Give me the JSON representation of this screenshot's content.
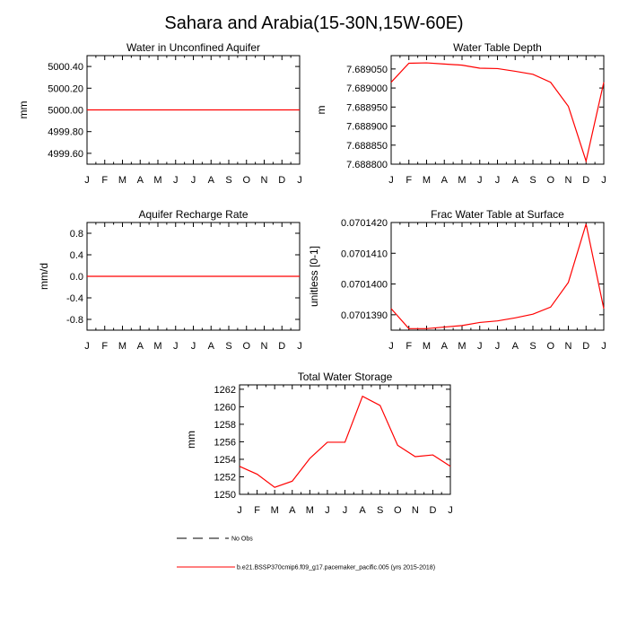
{
  "figure_title": "Sahara and Arabia(15-30N,15W-60E)",
  "legend": {
    "obs_label": "No Obs",
    "model_label": "b.e21.BSSP370cmip6.f09_g17.pacemaker_pacific.005 (yrs 2015-2018)",
    "model_color": "#ff0000",
    "obs_color": "#000000"
  },
  "chart_data": [
    {
      "type": "line",
      "title": "Water in Unconfined Aquifer",
      "ylabel": "mm",
      "xlabel": "",
      "x": [
        "J",
        "F",
        "M",
        "A",
        "M",
        "J",
        "J",
        "A",
        "S",
        "O",
        "N",
        "D",
        "J"
      ],
      "ylim": [
        4999.5,
        5000.5
      ],
      "yticks": [
        4999.6,
        4999.8,
        5000.0,
        5000.2,
        5000.4
      ],
      "ytick_labels": [
        "4999.60",
        "4999.80",
        "5000.00",
        "5000.20",
        "5000.40"
      ],
      "series": [
        {
          "color": "#ff0000",
          "values": [
            5000,
            5000,
            5000,
            5000,
            5000,
            5000,
            5000,
            5000,
            5000,
            5000,
            5000,
            5000,
            5000
          ]
        }
      ]
    },
    {
      "type": "line",
      "title": "Water Table Depth",
      "ylabel": "m",
      "xlabel": "",
      "x": [
        "J",
        "F",
        "M",
        "A",
        "M",
        "J",
        "J",
        "A",
        "S",
        "O",
        "N",
        "D",
        "J"
      ],
      "ylim": [
        7.6888,
        7.689085
      ],
      "yticks": [
        7.6888,
        7.68885,
        7.6889,
        7.68895,
        7.689,
        7.68905
      ],
      "ytick_labels": [
        "7.688800",
        "7.688850",
        "7.688900",
        "7.688950",
        "7.689000",
        "7.689050"
      ],
      "series": [
        {
          "color": "#ff0000",
          "values": [
            7.689015,
            7.689065,
            7.689066,
            7.689063,
            7.68906,
            7.689052,
            7.689051,
            7.689044,
            7.689036,
            7.689015,
            7.688952,
            7.688808,
            7.689015
          ]
        }
      ]
    },
    {
      "type": "line",
      "title": "Aquifer Recharge Rate",
      "ylabel": "mm/d",
      "xlabel": "",
      "x": [
        "J",
        "F",
        "M",
        "A",
        "M",
        "J",
        "J",
        "A",
        "S",
        "O",
        "N",
        "D",
        "J"
      ],
      "ylim": [
        -1.0,
        1.0
      ],
      "yticks": [
        -0.8,
        -0.4,
        0.0,
        0.4,
        0.8
      ],
      "ytick_labels": [
        "-0.8",
        "-0.4",
        "0.0",
        "0.4",
        "0.8"
      ],
      "series": [
        {
          "color": "#ff0000",
          "values": [
            0,
            0,
            0,
            0,
            0,
            0,
            0,
            0,
            0,
            0,
            0,
            0,
            0
          ]
        }
      ]
    },
    {
      "type": "line",
      "title": "Frac Water Table at Surface",
      "ylabel": "unitless [0-1]",
      "xlabel": "",
      "x": [
        "J",
        "F",
        "M",
        "A",
        "M",
        "J",
        "J",
        "A",
        "S",
        "O",
        "N",
        "D",
        "J"
      ],
      "ylim": [
        0.0701385,
        0.070142
      ],
      "yticks": [
        0.070139,
        0.07014,
        0.070141,
        0.070142
      ],
      "ytick_labels": [
        "0.0701390",
        "0.0701400",
        "0.0701410",
        "0.0701420"
      ],
      "series": [
        {
          "color": "#ff0000",
          "values": [
            0.0701392,
            0.07013855,
            0.07013855,
            0.0701386,
            0.07013865,
            0.07013875,
            0.0701388,
            0.0701389,
            0.07013902,
            0.07013925,
            0.07014005,
            0.07014195,
            0.0701392
          ]
        }
      ]
    },
    {
      "type": "line",
      "title": "Total Water Storage",
      "ylabel": "mm",
      "xlabel": "",
      "x": [
        "J",
        "F",
        "M",
        "A",
        "M",
        "J",
        "J",
        "A",
        "S",
        "O",
        "N",
        "D",
        "J"
      ],
      "ylim": [
        1250,
        1262.5
      ],
      "yticks": [
        1250,
        1252,
        1254,
        1256,
        1258,
        1260,
        1262
      ],
      "ytick_labels": [
        "1250",
        "1252",
        "1254",
        "1256",
        "1258",
        "1260",
        "1262"
      ],
      "series": [
        {
          "color": "#ff0000",
          "values": [
            1253.2,
            1252.3,
            1250.8,
            1251.5,
            1254.1,
            1255.95,
            1255.95,
            1261.2,
            1260.15,
            1255.6,
            1254.3,
            1254.5,
            1253.2
          ]
        }
      ]
    }
  ]
}
